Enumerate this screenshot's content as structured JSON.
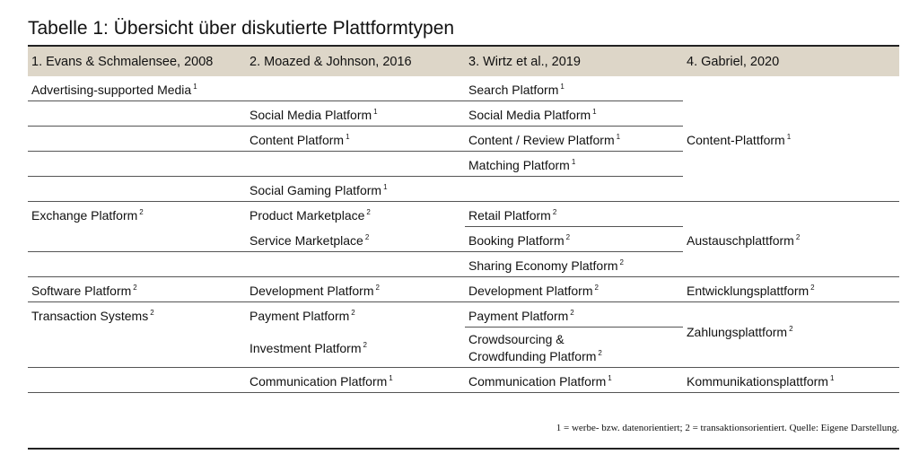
{
  "title": "Tabelle 1: Übersicht über diskutierte Plattformtypen",
  "headers": [
    "1. Evans & Schmalensee, 2008",
    "2. Moazed & Johnson, 2016",
    "3. Wirtz et al., 2019",
    "4. Gabriel, 2020"
  ],
  "rows": {
    "r1": {
      "c1": "Advertising-supported Media",
      "c1_sup": "1",
      "c3": "Search Platform",
      "c3_sup": "1"
    },
    "r2": {
      "c2": "Social Media Platform",
      "c2_sup": "1",
      "c3": "Social Media Platform",
      "c3_sup": "1"
    },
    "r3": {
      "c2": "Content Platform",
      "c2_sup": "1",
      "c3": "Content / Review Platform",
      "c3_sup": "1"
    },
    "r4": {
      "c3": "Matching Platform",
      "c3_sup": "1"
    },
    "r5": {
      "c2": "Social Gaming Platform",
      "c2_sup": "1"
    },
    "r6": {
      "c1": "Exchange Platform",
      "c1_sup": "2",
      "c2": "Product Marketplace",
      "c2_sup": "2",
      "c3": "Retail Platform",
      "c3_sup": "2"
    },
    "r7": {
      "c2": "Service Marketplace",
      "c2_sup": "2",
      "c3": "Booking Platform",
      "c3_sup": "2"
    },
    "r8": {
      "c3": "Sharing Economy Platform",
      "c3_sup": "2"
    },
    "r9": {
      "c1": "Software Platform",
      "c1_sup": "2",
      "c2": "Development Platform",
      "c2_sup": "2",
      "c3": "Development Platform",
      "c3_sup": "2",
      "c4": "Entwicklungsplattform",
      "c4_sup": "2"
    },
    "r10": {
      "c1": "Transaction Systems",
      "c1_sup": "2",
      "c2": "Payment Platform",
      "c2_sup": "2",
      "c3": "Payment Platform",
      "c3_sup": "2"
    },
    "r11": {
      "c2": "Investment Platform",
      "c2_sup": "2",
      "c3_line1": "Crowdsourcing &",
      "c3_line2": "Crowdfunding Platform",
      "c3_sup": "2"
    },
    "r12": {
      "c2": "Communication Platform",
      "c2_sup": "1",
      "c3": "Communication Platform",
      "c3_sup": "1",
      "c4": "Kommunikationsplattform",
      "c4_sup": "1"
    }
  },
  "merged": {
    "content": "Content-Plattform",
    "content_sup": "1",
    "exchange": "Austauschplattform",
    "exchange_sup": "2",
    "payment": "Zahlungsplattform",
    "payment_sup": "2"
  },
  "footnote": "1 = werbe- bzw. datenorientiert; 2 = transaktionsorientiert. Quelle: Eigene Darstellung."
}
